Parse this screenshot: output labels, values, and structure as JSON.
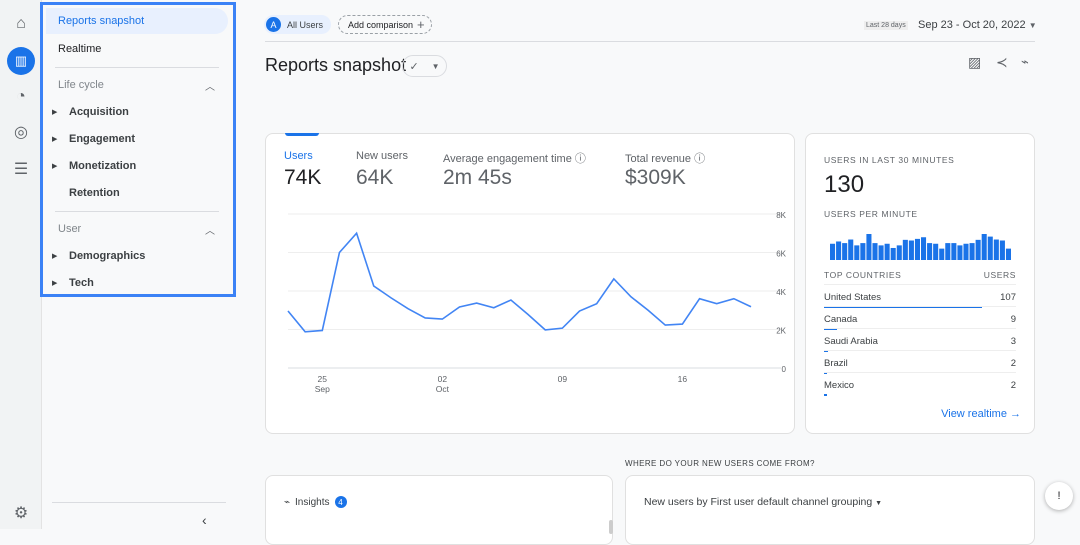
{
  "rail": {
    "icons": [
      "home-icon",
      "reports-icon",
      "explore-icon",
      "advertising-icon",
      "configure-icon",
      "settings-icon"
    ]
  },
  "sidebar": {
    "reports_snapshot": "Reports snapshot",
    "realtime": "Realtime",
    "lifecycle": {
      "title": "Life cycle",
      "items": [
        "Acquisition",
        "Engagement",
        "Monetization",
        "Retention"
      ]
    },
    "user": {
      "title": "User",
      "items": [
        "Demographics",
        "Tech"
      ]
    }
  },
  "header": {
    "segment_letter": "A",
    "segment": "All Users",
    "add_comparison": "Add comparison",
    "range_label": "Last 28 days",
    "date_range": "Sep 23 - Oct 20, 2022",
    "title": "Reports snapshot"
  },
  "metrics": [
    {
      "label": "Users",
      "value": "74K"
    },
    {
      "label": "New users",
      "value": "64K"
    },
    {
      "label": "Average engagement time",
      "value": "2m 45s"
    },
    {
      "label": "Total revenue",
      "value": "$309K"
    }
  ],
  "chart_data": {
    "type": "line",
    "x": [
      "Sep 23",
      "Sep 24",
      "Sep 25",
      "Sep 26",
      "Sep 27",
      "Sep 28",
      "Sep 29",
      "Sep 30",
      "Oct 01",
      "Oct 02",
      "Oct 03",
      "Oct 04",
      "Oct 05",
      "Oct 06",
      "Oct 07",
      "Oct 08",
      "Oct 09",
      "Oct 10",
      "Oct 11",
      "Oct 12",
      "Oct 13",
      "Oct 14",
      "Oct 15",
      "Oct 16",
      "Oct 17",
      "Oct 18",
      "Oct 19",
      "Oct 20"
    ],
    "series": [
      {
        "values": [
          2960,
          1880,
          1950,
          6000,
          7000,
          4260,
          3650,
          3080,
          2600,
          2540,
          3170,
          3370,
          3130,
          3530,
          2780,
          1980,
          2070,
          2960,
          3340,
          4630,
          3700,
          3000,
          2230,
          2280,
          3600,
          3340,
          3600,
          3180
        ]
      }
    ],
    "ylim": [
      0,
      8000
    ],
    "y_ticks": [
      "0",
      "2K",
      "4K",
      "6K",
      "8K"
    ],
    "x_ticks": [
      {
        "day": "25",
        "month": "Sep",
        "index": 2
      },
      {
        "day": "02",
        "month": "Oct",
        "index": 9
      },
      {
        "day": "09",
        "month": "",
        "index": 16
      },
      {
        "day": "16",
        "month": "",
        "index": 23
      }
    ],
    "color": "#4285f4",
    "grid": true
  },
  "realtime": {
    "title": "USERS IN LAST 30 MINUTES",
    "value": "130",
    "per_minute_label": "USERS PER MINUTE",
    "per_minute": [
      50,
      57,
      52,
      63,
      45,
      52,
      80,
      52,
      45,
      50,
      37,
      45,
      62,
      60,
      65,
      70,
      52,
      50,
      35,
      52,
      52,
      45,
      50,
      52,
      62,
      80,
      72,
      63,
      60,
      35
    ],
    "countries_header": "TOP COUNTRIES",
    "users_header": "USERS",
    "countries": [
      {
        "name": "United States",
        "users": 107
      },
      {
        "name": "Canada",
        "users": 9
      },
      {
        "name": "Saudi Arabia",
        "users": 3
      },
      {
        "name": "Brazil",
        "users": 2
      },
      {
        "name": "Mexico",
        "users": 2
      }
    ],
    "view_link": "View realtime"
  },
  "insights": {
    "title": "Insights",
    "count": "4"
  },
  "new_users": {
    "section_title": "WHERE DO YOUR NEW USERS COME FROM?",
    "selector": "New users by First user default channel grouping"
  }
}
